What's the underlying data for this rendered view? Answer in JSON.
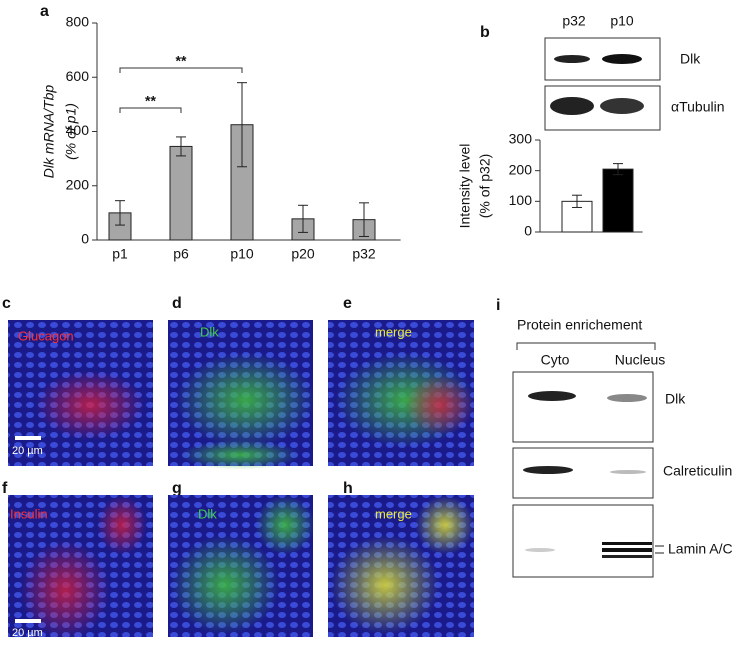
{
  "chart_data": [
    {
      "type": "bar",
      "ylabel": "Dlk mRNA/Tbp",
      "ylabel2": "(% of p1)",
      "categories": [
        "p1",
        "p6",
        "p10",
        "p20",
        "p32"
      ],
      "values": [
        100,
        345,
        425,
        78,
        75
      ],
      "errors": [
        45,
        35,
        155,
        50,
        62
      ],
      "color": "#a6a6a6",
      "ylim": [
        0,
        800
      ],
      "yticks": [
        0,
        200,
        400,
        600,
        800
      ],
      "annotations": [
        "**",
        "**"
      ]
    },
    {
      "type": "bar",
      "ylabel": "Intensity level",
      "ylabel2": "(% of p32)",
      "categories": [
        "p32",
        "p10"
      ],
      "values": [
        100,
        205
      ],
      "errors": [
        20,
        18
      ],
      "colors": [
        "#ffffff",
        "#000000"
      ],
      "ylim": [
        0,
        300
      ],
      "yticks": [
        0,
        100,
        200,
        300
      ]
    }
  ],
  "panels": {
    "a": "a",
    "b": "b",
    "c": "c",
    "d": "d",
    "e": "e",
    "f": "f",
    "g": "g",
    "h": "h",
    "i": "i"
  },
  "blot_b": {
    "labels": [
      "Dlk",
      "αTubulin"
    ]
  },
  "images": {
    "c": "Glucagon",
    "d": "Dlk",
    "e": "merge",
    "f": "Insulin",
    "g": "Dlk",
    "h": "merge",
    "scale": "20 µm"
  },
  "blot_i": {
    "title": "Protein enrichement",
    "columns": [
      "Cyto",
      "Nucleus"
    ],
    "labels": [
      "Dlk",
      "Calreticulin",
      "Lamin A/C"
    ]
  }
}
